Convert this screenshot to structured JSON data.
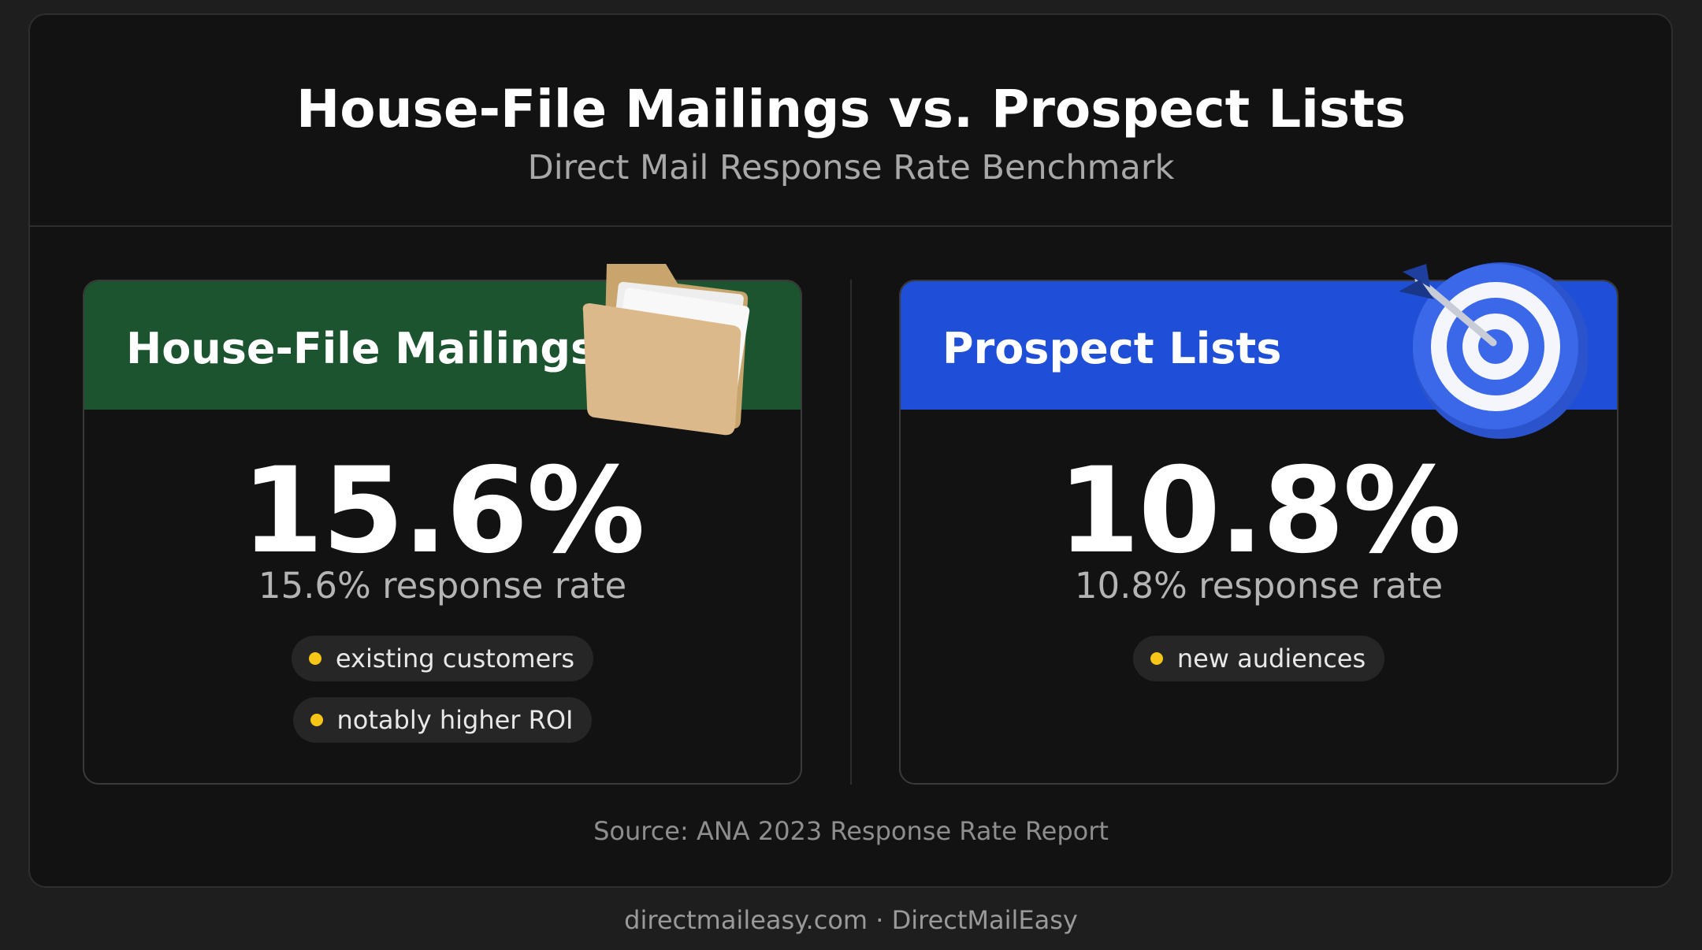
{
  "header": {
    "title": "House-File Mailings vs. Prospect Lists",
    "subtitle": "Direct Mail Response Rate Benchmark"
  },
  "cards": [
    {
      "title": "House-File Mailings",
      "value": "15.6%",
      "caption": "15.6% response rate",
      "tags": [
        "existing customers",
        "notably higher ROI"
      ]
    },
    {
      "title": "Prospect Lists",
      "value": "10.8%",
      "caption": "10.8% response rate",
      "tags": [
        "new audiences"
      ]
    }
  ],
  "source": "Source: ANA 2023 Response Rate Report",
  "footer": "directmaileasy.com · DirectMailEasy"
}
